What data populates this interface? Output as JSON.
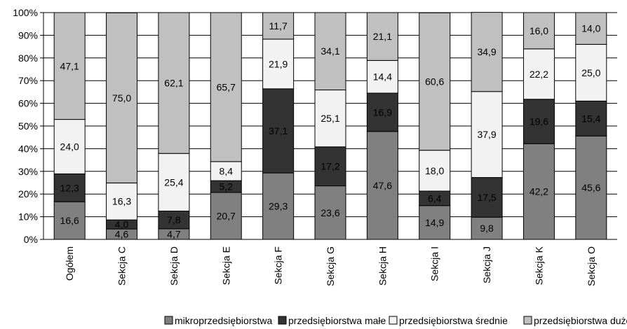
{
  "chart_data": {
    "type": "bar",
    "stacked": true,
    "categories": [
      "Ogółem",
      "Sekcja C",
      "Sekcja D",
      "Sekcja E",
      "Sekcja F",
      "Sekcja G",
      "Sekcja H",
      "Sekcja  I",
      "Sekcja J",
      "Sekcja K",
      "Sekcja O"
    ],
    "series": [
      {
        "name": "mikroprzedsiębiorstwa",
        "color": "#808080",
        "values": [
          16.6,
          4.6,
          4.7,
          20.7,
          29.3,
          23.6,
          47.6,
          14.9,
          9.8,
          42.2,
          45.6
        ],
        "labels": [
          "16,6",
          "4,6",
          "4,7",
          "20,7",
          "29,3",
          "23,6",
          "47,6",
          "14,9",
          "9,8",
          "42,2",
          "45,6"
        ]
      },
      {
        "name": "przedsiębiorstwa małe",
        "color": "#333333",
        "values": [
          12.3,
          4.0,
          7.8,
          5.2,
          37.1,
          17.2,
          16.9,
          6.4,
          17.5,
          19.6,
          15.4
        ],
        "labels": [
          "12,3",
          "4,0",
          "7,8",
          "5,2",
          "37,1",
          "17,2",
          "16,9",
          "6,4",
          "17,5",
          "19,6",
          "15,4"
        ]
      },
      {
        "name": "przedsiębiorstwa  średnie",
        "color": "#f2f2f2",
        "values": [
          24.0,
          16.3,
          25.4,
          8.4,
          21.9,
          25.1,
          14.4,
          18.0,
          37.9,
          22.2,
          25.0
        ],
        "labels": [
          "24,0",
          "16,3",
          "25,4",
          "8,4",
          "21,9",
          "25,1",
          "14,4",
          "18,0",
          "37,9",
          "22,2",
          "25,0"
        ]
      },
      {
        "name": "przedsiębiorstwa  duże",
        "color": "#c0c0c0",
        "values": [
          47.1,
          75.0,
          62.1,
          65.7,
          11.7,
          34.1,
          21.1,
          60.6,
          34.9,
          16.0,
          14.0
        ],
        "labels": [
          "47,1",
          "75,0",
          "62,1",
          "65,7",
          "11,7",
          "34,1",
          "21,1",
          "60,6",
          "34,9",
          "16,0",
          "14,0"
        ]
      }
    ],
    "y_ticks": [
      "0%",
      "10%",
      "20%",
      "30%",
      "40%",
      "50%",
      "60%",
      "70%",
      "80%",
      "90%",
      "100%"
    ],
    "ylim": [
      0,
      100
    ],
    "grid": true,
    "legend_position": "bottom"
  }
}
